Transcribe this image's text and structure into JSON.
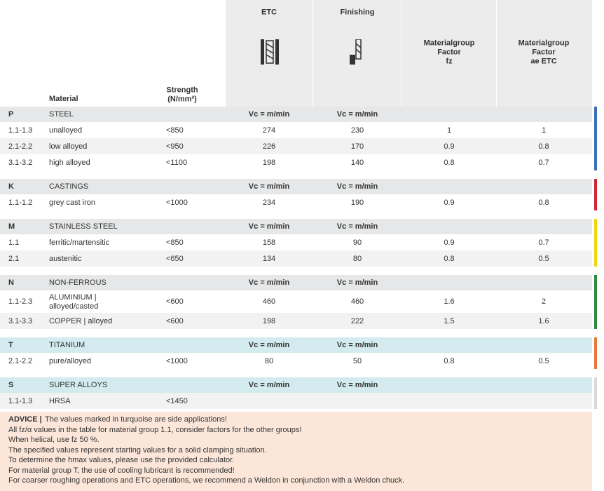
{
  "columns": {
    "material": "Material",
    "strength": [
      "Strength",
      "(N/mm²)"
    ],
    "etc": "ETC",
    "finishing": "Finishing",
    "fz": [
      "Materialgroup",
      "Factor",
      "fz"
    ],
    "ae": [
      "Materialgroup",
      "Factor",
      "ae ETC"
    ]
  },
  "groups": [
    {
      "code": "P",
      "name": "STEEL",
      "vc_etc": "Vc = m/min",
      "vc_fin": "Vc = m/min",
      "color": "#3f6db3",
      "rows": [
        [
          "1.1-1.3",
          "unalloyed",
          "<850",
          274,
          230,
          1,
          1
        ],
        [
          "2.1-2.2",
          "low alloyed",
          "<950",
          226,
          170,
          0.9,
          0.8
        ],
        [
          "3.1-3.2",
          "high alloyed",
          "<1100",
          198,
          140,
          0.8,
          0.7
        ]
      ]
    },
    {
      "code": "K",
      "name": "CASTINGS",
      "vc_etc": "Vc = m/min",
      "vc_fin": "Vc = m/min",
      "color": "#d0262e",
      "rows": [
        [
          "1.1-1.2",
          "grey cast iron",
          "<1000",
          234,
          190,
          0.9,
          0.8
        ]
      ]
    },
    {
      "code": "M",
      "name": "STAINLESS STEEL",
      "vc_etc": "Vc = m/min",
      "vc_fin": "Vc = m/min",
      "color": "#f2d416",
      "rows": [
        [
          "1.1",
          "ferritic/martensitic",
          "<850",
          158,
          90,
          0.9,
          0.7
        ],
        [
          "2.1",
          "austenitic",
          "<650",
          134,
          80,
          0.8,
          0.5
        ]
      ]
    },
    {
      "code": "N",
      "name": "NON-FERROUS",
      "vc_etc": "Vc = m/min",
      "vc_fin": "Vc = m/min",
      "color": "#2e8a3e",
      "rows": [
        [
          "1.1-2.3",
          [
            "ALUMINIUM |",
            "alloyed/casted"
          ],
          "<600",
          460,
          460,
          1.6,
          2
        ],
        [
          "3.1-3.3",
          "COPPER | alloyed",
          "<600",
          198,
          222,
          1.5,
          1.6
        ]
      ]
    },
    {
      "code": "T",
      "name": "TITANIUM",
      "vc_etc": "Vc = m/min",
      "vc_fin": "Vc = m/min",
      "color": "#e8773a",
      "side": true,
      "rows": [
        [
          "2.1-2.2",
          "pure/alloyed",
          "<1000",
          80,
          50,
          0.8,
          0.5
        ]
      ]
    },
    {
      "code": "S",
      "name": "SUPER ALLOYS",
      "vc_etc": "Vc = m/min",
      "vc_fin": "Vc = m/min",
      "color": "#d9d9d9",
      "side": true,
      "rows": [
        [
          "1.1-1.3",
          "HRSA",
          "<1450"
        ]
      ]
    }
  ],
  "advice": {
    "label": "ADVICE |",
    "lines": [
      "The values marked in turquoise are side applications!",
      "All fz/α values in the table for material group 1.1, consider factors for the other groups!",
      "When helical, use fz 50 %.",
      "The specified values represent starting values for a solid clamping situation.",
      "To determine the hmax values, please use the provided calculator.",
      "For material group T, the use of cooling lubricant is recommended!",
      "For coarser roughing operations and ETC operations, we recommend a Weldon in conjunction with a Weldon chuck."
    ]
  }
}
